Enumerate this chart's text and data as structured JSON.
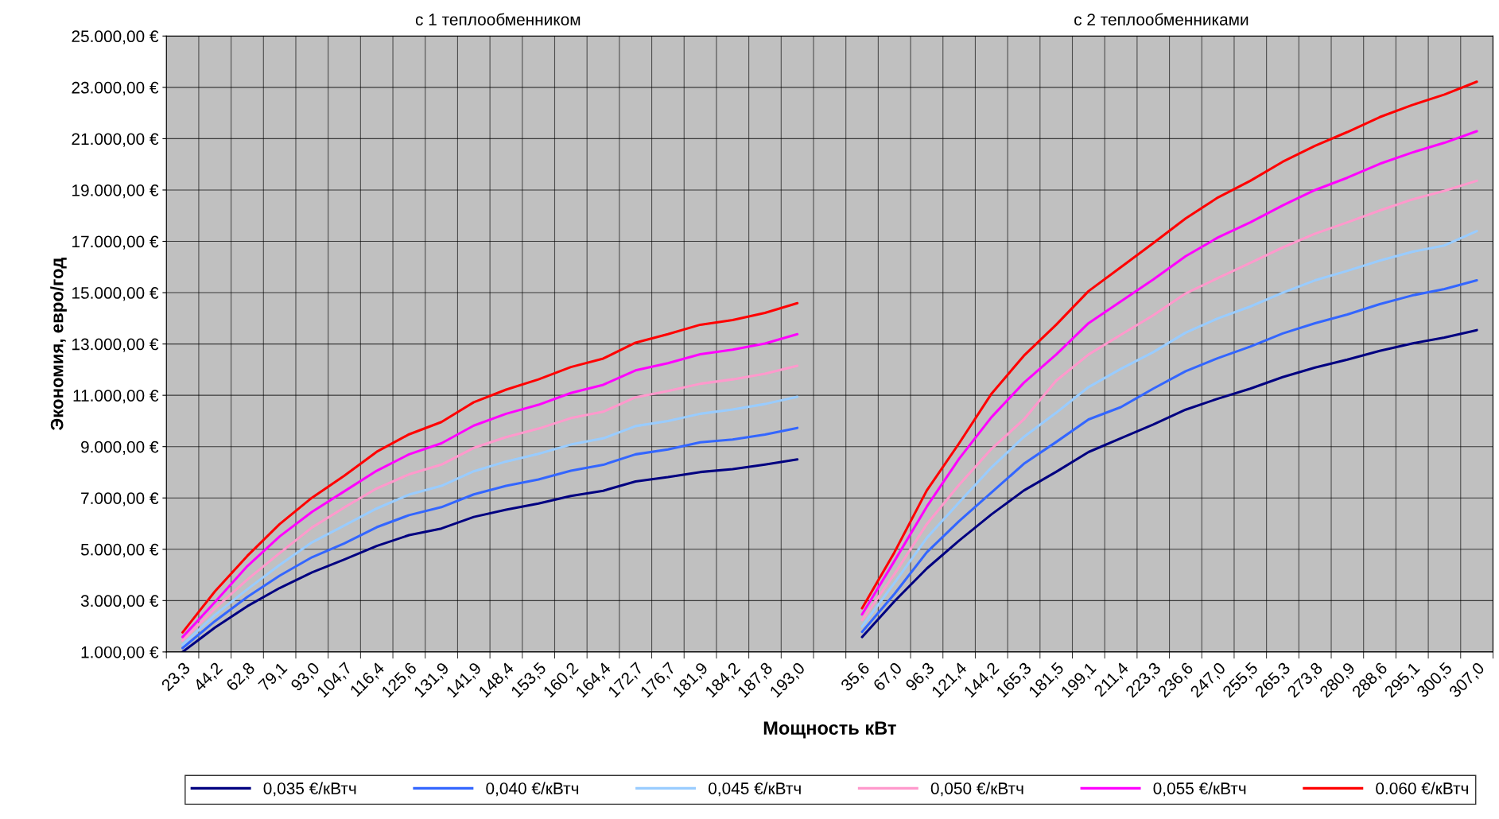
{
  "chart_data": {
    "type": "line",
    "annotations": [
      "с 1 теплообменником",
      "с 2 теплообменниками"
    ],
    "xlabel": "Мощность кВт",
    "ylabel": "Экономия, евро/год",
    "categories": [
      "23,3",
      "44,2",
      "62,8",
      "79,1",
      "93,0",
      "104,7",
      "116,4",
      "125,6",
      "131,9",
      "141,9",
      "148,4",
      "153,5",
      "160,2",
      "164,4",
      "172,7",
      "176,7",
      "181,9",
      "184,2",
      "187,8",
      "193,0",
      null,
      "35,6",
      "67,0",
      "96,3",
      "121,4",
      "144,2",
      "165,3",
      "181,5",
      "199,1",
      "211,4",
      "223,3",
      "236,6",
      "247,0",
      "255,5",
      "265,3",
      "273,8",
      "280,9",
      "288,6",
      "295,1",
      "300,5",
      "307,0"
    ],
    "series": [
      {
        "name": "0,035 €/кВтч",
        "color": "#000080",
        "values": [
          1000,
          1950,
          2780,
          3490,
          4100,
          4600,
          5130,
          5550,
          5810,
          6260,
          6540,
          6780,
          7080,
          7280,
          7640,
          7810,
          8010,
          8120,
          8300,
          8500,
          null,
          1580,
          2970,
          4250,
          5340,
          6360,
          7290,
          8020,
          8790,
          9330,
          9860,
          10440,
          10870,
          11260,
          11710,
          12080,
          12390,
          12730,
          13020,
          13250,
          13540
        ]
      },
      {
        "name": "0,040 €/кВтч",
        "color": "#3366ff",
        "values": [
          1150,
          2200,
          3140,
          3970,
          4690,
          5230,
          5860,
          6330,
          6640,
          7140,
          7470,
          7720,
          8060,
          8290,
          8700,
          8890,
          9170,
          9280,
          9470,
          9730,
          null,
          1780,
          3260,
          4880,
          6100,
          7210,
          8330,
          9180,
          10060,
          10540,
          11260,
          11940,
          12450,
          12900,
          13410,
          13810,
          14150,
          14550,
          14890,
          15140,
          15480
        ]
      },
      {
        "name": "0,045 €/кВтч",
        "color": "#99ccff",
        "values": [
          1280,
          2440,
          3440,
          4390,
          5270,
          5930,
          6590,
          7130,
          7470,
          8040,
          8420,
          8720,
          9080,
          9320,
          9800,
          10000,
          10280,
          10450,
          10660,
          10940,
          null,
          1990,
          3690,
          5440,
          6830,
          8190,
          9380,
          10320,
          11320,
          12030,
          12680,
          13440,
          14000,
          14460,
          15000,
          15480,
          15850,
          16250,
          16590,
          16840,
          17400
        ]
      },
      {
        "name": "0,050 €/кВтч",
        "color": "#ff99cc",
        "values": [
          1450,
          2690,
          3820,
          4850,
          5850,
          6630,
          7370,
          7920,
          8300,
          8950,
          9370,
          9700,
          10110,
          10360,
          10920,
          11170,
          11450,
          11620,
          11840,
          12150,
          null,
          2240,
          4030,
          5980,
          7510,
          8910,
          10060,
          11570,
          12590,
          13360,
          14120,
          14970,
          15570,
          16160,
          16760,
          17300,
          17740,
          18200,
          18630,
          18970,
          19360
        ]
      },
      {
        "name": "0,055 €/кВтч",
        "color": "#ff00ff",
        "values": [
          1580,
          2940,
          4340,
          5500,
          6460,
          7260,
          8060,
          8700,
          9130,
          9820,
          10280,
          10630,
          11090,
          11410,
          11970,
          12250,
          12600,
          12780,
          13020,
          13380,
          null,
          2460,
          4540,
          6660,
          8530,
          10150,
          11490,
          12590,
          13810,
          14660,
          15510,
          16420,
          17150,
          17740,
          18400,
          19000,
          19480,
          20020,
          20460,
          20840,
          21290
        ]
      },
      {
        "name": "0.060 €/кВтч",
        "color": "#ff0000",
        "values": [
          1760,
          3360,
          4740,
          5980,
          7010,
          7870,
          8800,
          9480,
          9960,
          10730,
          11220,
          11620,
          12100,
          12430,
          13050,
          13380,
          13750,
          13930,
          14210,
          14590,
          null,
          2700,
          4880,
          7290,
          9130,
          11060,
          12540,
          13750,
          15060,
          15990,
          16930,
          17890,
          18710,
          19360,
          20100,
          20720,
          21260,
          21840,
          22310,
          22720,
          23220
        ]
      }
    ],
    "ylim": [
      1000,
      25000
    ],
    "yticks": [
      {
        "value": 1000,
        "label": "1.000,00 €"
      },
      {
        "value": 3000,
        "label": "3.000,00 €"
      },
      {
        "value": 5000,
        "label": "5.000,00 €"
      },
      {
        "value": 7000,
        "label": "7.000,00 €"
      },
      {
        "value": 9000,
        "label": "9.000,00 €"
      },
      {
        "value": 11000,
        "label": "11.000,00 €"
      },
      {
        "value": 13000,
        "label": "13.000,00 €"
      },
      {
        "value": 15000,
        "label": "15.000,00 €"
      },
      {
        "value": 17000,
        "label": "17.000,00 €"
      },
      {
        "value": 19000,
        "label": "19.000,00 €"
      },
      {
        "value": 21000,
        "label": "21.000,00 €"
      },
      {
        "value": 23000,
        "label": "23.000,00 €"
      },
      {
        "value": 25000,
        "label": "25.000,00 €"
      }
    ],
    "grid": true,
    "legend": "bottom",
    "marker": "none",
    "line_style": "solid"
  }
}
